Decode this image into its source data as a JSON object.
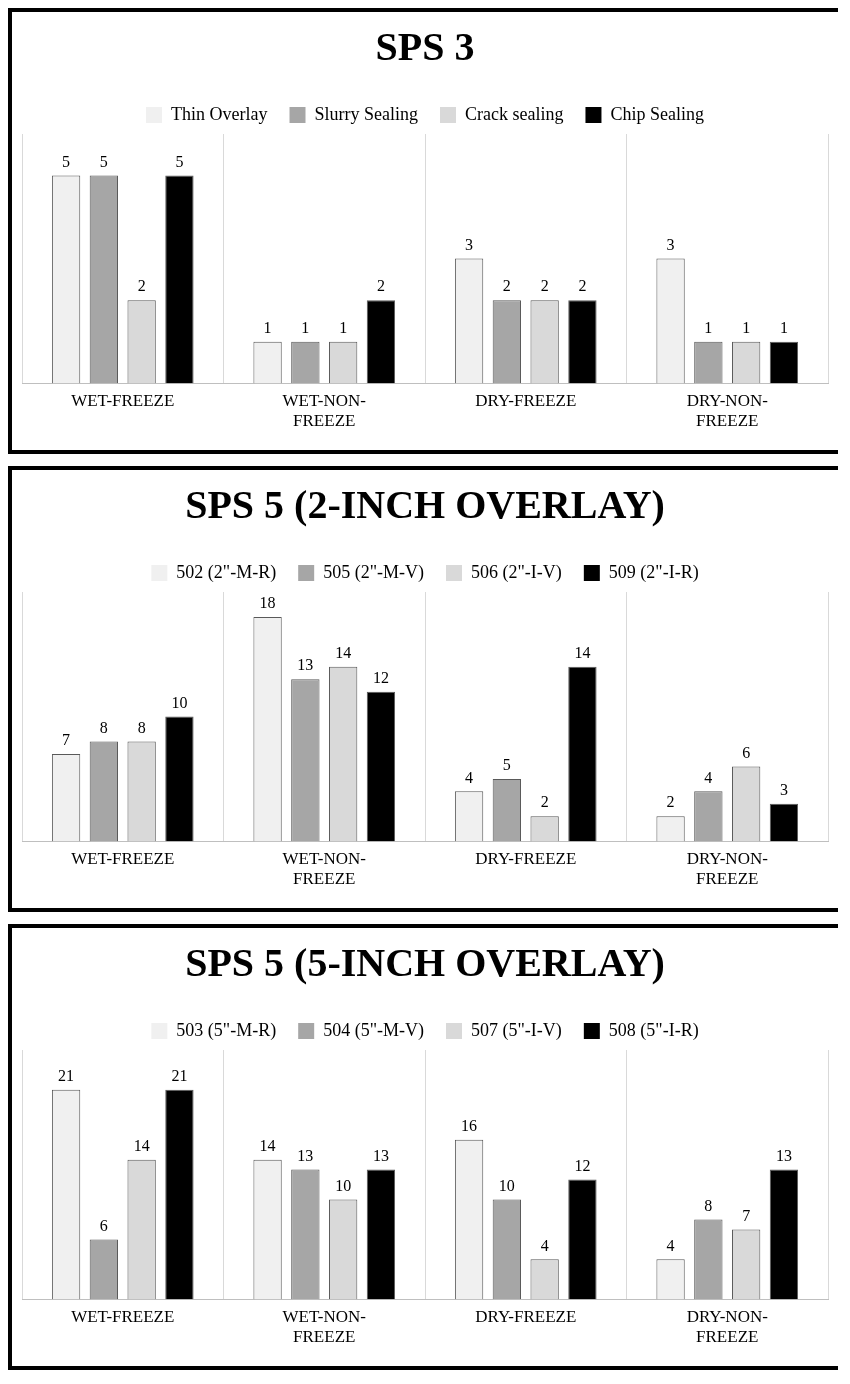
{
  "chart_data": [
    {
      "type": "bar",
      "title": "SPS 3",
      "categories": [
        "WET-FREEZE",
        "WET-NON-FREEZE",
        "DRY-FREEZE",
        "DRY-NON-FREEZE"
      ],
      "series": [
        {
          "name": "Thin Overlay",
          "color": "#f0f0f0",
          "values": [
            5,
            1,
            3,
            3
          ]
        },
        {
          "name": "Slurry Sealing",
          "color": "#a6a6a6",
          "values": [
            5,
            1,
            2,
            1
          ]
        },
        {
          "name": "Crack sealing",
          "color": "#d9d9d9",
          "values": [
            2,
            1,
            2,
            1
          ]
        },
        {
          "name": "Chip Sealing",
          "color": "#000000",
          "values": [
            5,
            2,
            2,
            1
          ]
        }
      ],
      "data_labels": true,
      "legend": "top",
      "grid": "x"
    },
    {
      "type": "bar",
      "title": "SPS 5 (2-INCH OVERLAY)",
      "categories": [
        "WET-FREEZE",
        "WET-NON-FREEZE",
        "DRY-FREEZE",
        "DRY-NON-FREEZE"
      ],
      "series": [
        {
          "name": "502 (2\"-M-R)",
          "color": "#f0f0f0",
          "values": [
            7,
            18,
            4,
            2
          ]
        },
        {
          "name": "505 (2\"-M-V)",
          "color": "#a6a6a6",
          "values": [
            8,
            13,
            5,
            4
          ]
        },
        {
          "name": "506 (2\"-I-V)",
          "color": "#d9d9d9",
          "values": [
            8,
            14,
            2,
            6
          ]
        },
        {
          "name": "509 (2\"-I-R)",
          "color": "#000000",
          "values": [
            10,
            12,
            14,
            3
          ]
        }
      ],
      "data_labels": true,
      "legend": "top",
      "grid": "x"
    },
    {
      "type": "bar",
      "title": "SPS 5 (5-INCH OVERLAY)",
      "categories": [
        "WET-FREEZE",
        "WET-NON-FREEZE",
        "DRY-FREEZE",
        "DRY-NON-FREEZE"
      ],
      "series": [
        {
          "name": "503 (5\"-M-R)",
          "color": "#f0f0f0",
          "values": [
            21,
            14,
            16,
            4
          ]
        },
        {
          "name": "504 (5\"-M-V)",
          "color": "#a6a6a6",
          "values": [
            6,
            13,
            10,
            8
          ]
        },
        {
          "name": "507 (5\"-I-V)",
          "color": "#d9d9d9",
          "values": [
            14,
            10,
            4,
            7
          ]
        },
        {
          "name": "508 (5\"-I-R)",
          "color": "#000000",
          "values": [
            21,
            13,
            12,
            13
          ]
        }
      ],
      "data_labels": true,
      "legend": "top",
      "grid": "x"
    }
  ]
}
